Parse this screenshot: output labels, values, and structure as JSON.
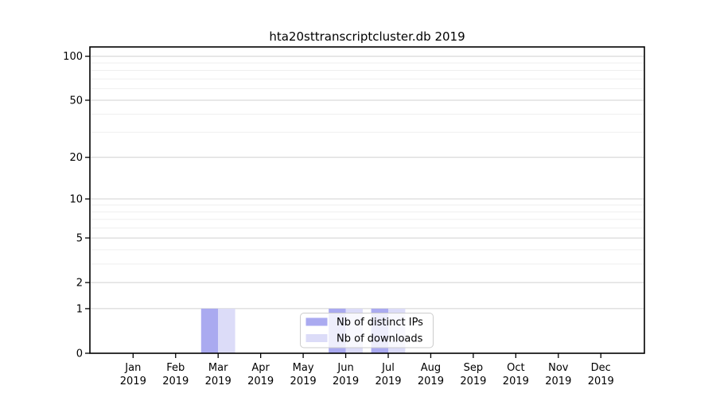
{
  "chart_data": {
    "type": "bar",
    "title": "hta20sttranscriptcluster.db 2019",
    "xlabel": "",
    "ylabel": "",
    "yscale": "log1p",
    "ylim": [
      0,
      116
    ],
    "grid": true,
    "legend_position": "inside-bottom-center",
    "categories": [
      {
        "month": "Jan",
        "year": "2019"
      },
      {
        "month": "Feb",
        "year": "2019"
      },
      {
        "month": "Mar",
        "year": "2019"
      },
      {
        "month": "Apr",
        "year": "2019"
      },
      {
        "month": "May",
        "year": "2019"
      },
      {
        "month": "Jun",
        "year": "2019"
      },
      {
        "month": "Jul",
        "year": "2019"
      },
      {
        "month": "Aug",
        "year": "2019"
      },
      {
        "month": "Sep",
        "year": "2019"
      },
      {
        "month": "Oct",
        "year": "2019"
      },
      {
        "month": "Nov",
        "year": "2019"
      },
      {
        "month": "Dec",
        "year": "2019"
      }
    ],
    "series": [
      {
        "name": "Nb of distinct IPs",
        "color": "#aaaaf0",
        "values": [
          0,
          0,
          1,
          0,
          0,
          1,
          1,
          0,
          0,
          0,
          0,
          0
        ]
      },
      {
        "name": "Nb of downloads",
        "color": "#dcdcf8",
        "values": [
          0,
          0,
          1,
          0,
          0,
          1,
          1,
          0,
          0,
          0,
          0,
          0
        ]
      }
    ],
    "yticks": [
      {
        "v": 100,
        "label": "100"
      },
      {
        "v": 50,
        "label": "50"
      },
      {
        "v": 20,
        "label": "20"
      },
      {
        "v": 10,
        "label": "10"
      },
      {
        "v": 5,
        "label": "5"
      },
      {
        "v": 2,
        "label": "2"
      },
      {
        "v": 1,
        "label": "1"
      },
      {
        "v": 0,
        "label": "0"
      }
    ],
    "minor_yticks": [
      3,
      4,
      6,
      7,
      8,
      9,
      30,
      40,
      60,
      70,
      80,
      90
    ],
    "colors": {
      "spine": "#000000",
      "grid_major": "#d0d0d0",
      "grid_minor": "#efefef",
      "legend_border": "#cccccc",
      "background": "#ffffff"
    }
  }
}
